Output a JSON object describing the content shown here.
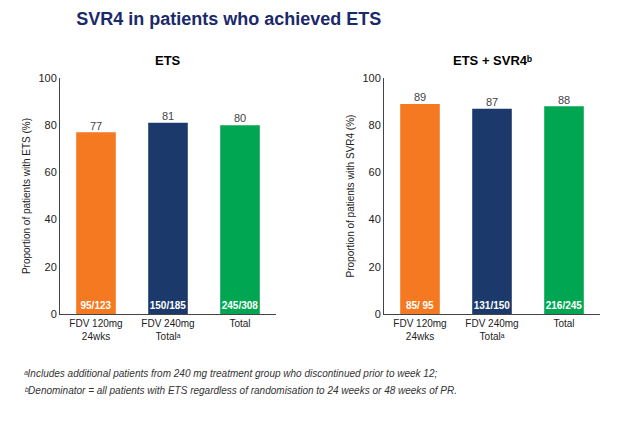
{
  "title": "SVR4 in patients who achieved ETS",
  "title_color": "#1a2a6b",
  "annotations": [
    "ᵃIncludes additional patients from 240 mg treatment group who discontinued prior to week 12;",
    "ᵇDenominator = all patients with ETS regardless of randomisation to 24 weeks or 48 weeks of PR."
  ],
  "chart_data": [
    {
      "type": "bar",
      "title": "ETS",
      "ylabel": "Proportion of patients with ETS (%)",
      "categories": [
        "FDV 120mg\n24wks",
        "FDV 240mg\nTotalᵃ",
        "Total"
      ],
      "values": [
        77,
        81,
        80
      ],
      "colors": [
        "#f47920",
        "#1b3a6b",
        "#00a651"
      ],
      "bar_labels": [
        "95/123",
        "150/185",
        "245/308"
      ],
      "data_labels": true,
      "grid": false,
      "ylim": [
        0,
        100
      ],
      "yticks": [
        0,
        20,
        40,
        60,
        80,
        100
      ]
    },
    {
      "type": "bar",
      "title": "ETS + SVR4ᵇ",
      "ylabel": "Proportion of patients with SVR4 (%)",
      "categories": [
        "FDV 120mg\n24wks",
        "FDV 240mg\nTotalᵃ",
        "Total"
      ],
      "values": [
        89,
        87,
        88
      ],
      "colors": [
        "#f47920",
        "#1b3a6b",
        "#00a651"
      ],
      "bar_labels": [
        "85/ 95",
        "131/150",
        "216/245"
      ],
      "data_labels": true,
      "grid": false,
      "ylim": [
        0,
        100
      ],
      "yticks": [
        0,
        20,
        40,
        60,
        80,
        100
      ]
    }
  ]
}
